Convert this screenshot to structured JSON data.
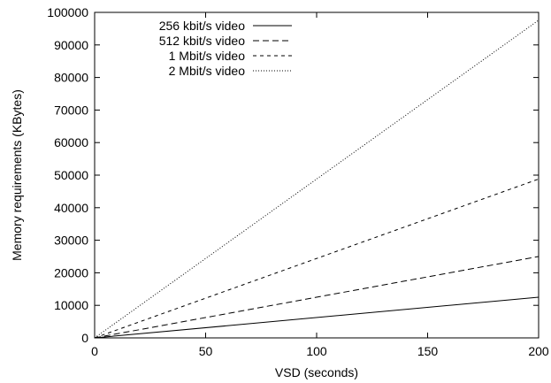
{
  "chart_data": {
    "type": "line",
    "xlabel": "VSD (seconds)",
    "ylabel": "Memory requirements (KBytes)",
    "xlim": [
      0,
      200
    ],
    "ylim": [
      0,
      100000
    ],
    "xticks": [
      "0",
      "50",
      "100",
      "150",
      "200"
    ],
    "yticks": [
      "0",
      "10000",
      "20000",
      "30000",
      "40000",
      "50000",
      "60000",
      "70000",
      "80000",
      "90000",
      "100000"
    ],
    "grid": false,
    "legend_position": "top-left",
    "series": [
      {
        "name": "256 kbit/s video",
        "dash": "solid",
        "x": [
          0,
          200
        ],
        "y": [
          0,
          12500
        ]
      },
      {
        "name": "512 kbit/s video",
        "dash": "dashed",
        "x": [
          0,
          200
        ],
        "y": [
          0,
          25000
        ]
      },
      {
        "name": "1 Mbit/s video",
        "dash": "short-dashed",
        "x": [
          0,
          200
        ],
        "y": [
          0,
          48800
        ]
      },
      {
        "name": "2 Mbit/s video",
        "dash": "dotted",
        "x": [
          0,
          200
        ],
        "y": [
          0,
          97600
        ]
      }
    ]
  }
}
